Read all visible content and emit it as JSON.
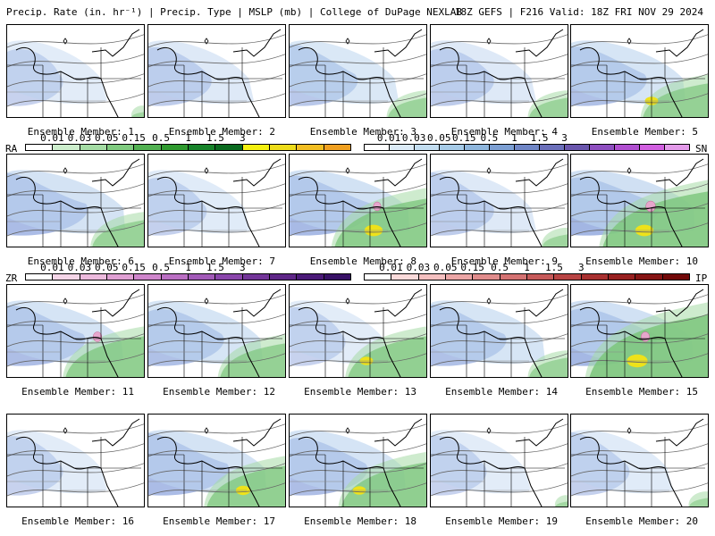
{
  "header": {
    "left": "Precip. Rate (in. hr⁻¹) | Precip. Type | MSLP (mb) | College of DuPage NEXLAB",
    "right": "18Z GEFS | F216 Valid: 18Z FRI NOV 29 2024"
  },
  "members": [
    {
      "label": "Ensemble Member: 1",
      "blue": 0.3,
      "green": 0.1,
      "yellow": 0,
      "pink": 0
    },
    {
      "label": "Ensemble Member: 2",
      "blue": 0.45,
      "green": 0.05,
      "yellow": 0,
      "pink": 0
    },
    {
      "label": "Ensemble Member: 3",
      "blue": 0.55,
      "green": 0.3,
      "yellow": 0,
      "pink": 0
    },
    {
      "label": "Ensemble Member: 4",
      "blue": 0.45,
      "green": 0.3,
      "yellow": 0,
      "pink": 0
    },
    {
      "label": "Ensemble Member: 5",
      "blue": 0.7,
      "green": 0.5,
      "yellow": 0.1,
      "pink": 0
    },
    {
      "label": "Ensemble Member: 6",
      "blue": 0.8,
      "green": 0.4,
      "yellow": 0,
      "pink": 0
    },
    {
      "label": "Ensemble Member: 7",
      "blue": 0.35,
      "green": 0.05,
      "yellow": 0,
      "pink": 0
    },
    {
      "label": "Ensemble Member: 8",
      "blue": 0.85,
      "green": 0.7,
      "yellow": 0.3,
      "pink": 0.2
    },
    {
      "label": "Ensemble Member: 9",
      "blue": 0.45,
      "green": 0.2,
      "yellow": 0,
      "pink": 0
    },
    {
      "label": "Ensemble Member: 10",
      "blue": 0.95,
      "green": 0.8,
      "yellow": 0.3,
      "pink": 0.4
    },
    {
      "label": "Ensemble Member: 11",
      "blue": 0.75,
      "green": 0.6,
      "yellow": 0,
      "pink": 0.3
    },
    {
      "label": "Ensemble Member: 12",
      "blue": 0.7,
      "green": 0.5,
      "yellow": 0,
      "pink": 0
    },
    {
      "label": "Ensemble Member: 13",
      "blue": 0.3,
      "green": 0.6,
      "yellow": 0.1,
      "pink": 0
    },
    {
      "label": "Ensemble Member: 14",
      "blue": 0.7,
      "green": 0.3,
      "yellow": 0,
      "pink": 0
    },
    {
      "label": "Ensemble Member: 15",
      "blue": 0.9,
      "green": 0.9,
      "yellow": 0.4,
      "pink": 0.3
    },
    {
      "label": "Ensemble Member: 16",
      "blue": 0.3,
      "green": 0.05,
      "yellow": 0,
      "pink": 0
    },
    {
      "label": "Ensemble Member: 17",
      "blue": 0.8,
      "green": 0.6,
      "yellow": 0.15,
      "pink": 0
    },
    {
      "label": "Ensemble Member: 18",
      "blue": 0.75,
      "green": 0.65,
      "yellow": 0.1,
      "pink": 0
    },
    {
      "label": "Ensemble Member: 19",
      "blue": 0.3,
      "green": 0.1,
      "yellow": 0,
      "pink": 0
    },
    {
      "label": "Ensemble Member: 20",
      "blue": 0.35,
      "green": 0.15,
      "yellow": 0,
      "pink": 0
    }
  ],
  "legends": {
    "ra": {
      "name": "RA",
      "ticks": [
        "0.01",
        "0.03",
        "0.05",
        "0.15",
        "0.5",
        "1",
        "1.5",
        "3"
      ],
      "colors": [
        "#ffffff",
        "#cdeecd",
        "#a4dca4",
        "#7fcb7f",
        "#52b152",
        "#2f9a2f",
        "#17832a",
        "#0a6a1f",
        "#f4f010",
        "#eddc1a",
        "#f2be22",
        "#f0a020"
      ]
    },
    "sn": {
      "name": "SN",
      "ticks": [
        "0.01",
        "0.03",
        "0.05",
        "0.15",
        "0.5",
        "1",
        "1.5",
        "3"
      ],
      "colors": [
        "#ffffff",
        "#dcebf7",
        "#c2ddf0",
        "#a6cbe8",
        "#8eb6dd",
        "#7c9fd3",
        "#6f86c6",
        "#6b6fba",
        "#6a56ad",
        "#8e4fc0",
        "#b04fd0",
        "#d15fe0",
        "#e39ae9"
      ]
    },
    "zr": {
      "name": "ZR",
      "ticks": [
        "0.01",
        "0.03",
        "0.05",
        "0.15",
        "0.5",
        "1",
        "1.5",
        "3"
      ],
      "colors": [
        "#ffffff",
        "#f5d6e8",
        "#ecbadd",
        "#e0a0d4",
        "#cf86cc",
        "#ba6fc3",
        "#a25ab8",
        "#8a46ab",
        "#733599",
        "#5e2687",
        "#4b1a78",
        "#381166"
      ]
    },
    "ip": {
      "name": "IP",
      "ticks": [
        "0.01",
        "0.03",
        "0.05",
        "0.15",
        "0.5",
        "1",
        "1.5",
        "3"
      ],
      "colors": [
        "#ffffff",
        "#fadada",
        "#f4c0c0",
        "#eca6a6",
        "#e08c8c",
        "#d47272",
        "#c65a5a",
        "#b84444",
        "#a83030",
        "#982020",
        "#861414",
        "#720808"
      ]
    }
  }
}
